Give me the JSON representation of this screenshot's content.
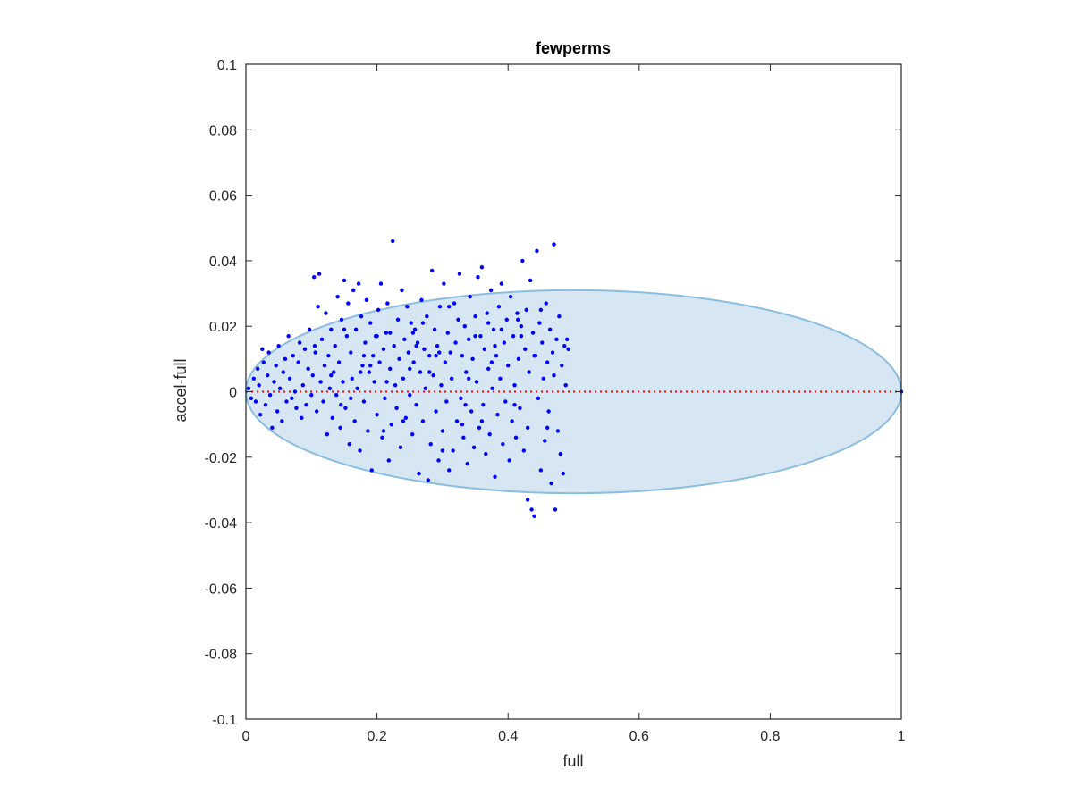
{
  "chart_data": {
    "type": "scatter",
    "title": "fewperms",
    "xlabel": "full",
    "ylabel": "accel-full",
    "xlim": [
      0,
      1
    ],
    "ylim": [
      -0.1,
      0.1
    ],
    "x_ticks": [
      "0",
      "0.2",
      "0.4",
      "0.6",
      "0.8",
      "1"
    ],
    "y_ticks": [
      "-0.1",
      "-0.08",
      "-0.06",
      "-0.04",
      "-0.02",
      "0",
      "0.02",
      "0.04",
      "0.06",
      "0.08",
      "0.1"
    ],
    "grid": false,
    "box": true,
    "zero_line": {
      "y": 0,
      "style": "dotted",
      "color": "#ff0000"
    },
    "ellipse": {
      "cx": 0.5,
      "cy": 0.0,
      "rx": 0.5,
      "ry": 0.031,
      "fill": "#d6e7f3",
      "stroke": "#8bbde0"
    },
    "points_color": "#0000ff",
    "points": [
      [
        0.004,
        0.001
      ],
      [
        0.008,
        -0.002
      ],
      [
        0.012,
        0.004
      ],
      [
        0.015,
        -0.003
      ],
      [
        0.018,
        0.007
      ],
      [
        0.02,
        0.002
      ],
      [
        0.022,
        -0.007
      ],
      [
        0.025,
        0.013
      ],
      [
        0.027,
        0.009
      ],
      [
        0.03,
        -0.004
      ],
      [
        0.033,
        0.005
      ],
      [
        0.035,
        0.012
      ],
      [
        0.037,
        -0.001
      ],
      [
        0.04,
        -0.011
      ],
      [
        0.043,
        0.003
      ],
      [
        0.046,
        0.008
      ],
      [
        0.048,
        -0.006
      ],
      [
        0.05,
        0.014
      ],
      [
        0.052,
        0.001
      ],
      [
        0.055,
        -0.009
      ],
      [
        0.057,
        0.006
      ],
      [
        0.06,
        0.01
      ],
      [
        0.062,
        -0.003
      ],
      [
        0.065,
        0.017
      ],
      [
        0.067,
        0.004
      ],
      [
        0.07,
        -0.002
      ],
      [
        0.072,
        0.011
      ],
      [
        0.075,
        0.0
      ],
      [
        0.077,
        -0.005
      ],
      [
        0.08,
        0.009
      ],
      [
        0.082,
        0.015
      ],
      [
        0.085,
        -0.008
      ],
      [
        0.087,
        0.002
      ],
      [
        0.09,
        0.013
      ],
      [
        0.092,
        -0.004
      ],
      [
        0.095,
        0.007
      ],
      [
        0.097,
        0.019
      ],
      [
        0.1,
        -0.001
      ],
      [
        0.102,
        0.005
      ],
      [
        0.104,
        0.035
      ],
      [
        0.106,
        0.012
      ],
      [
        0.108,
        -0.006
      ],
      [
        0.11,
        0.026
      ],
      [
        0.112,
        0.036
      ],
      [
        0.114,
        0.003
      ],
      [
        0.116,
        0.016
      ],
      [
        0.118,
        -0.003
      ],
      [
        0.12,
        0.008
      ],
      [
        0.122,
        0.024
      ],
      [
        0.124,
        -0.013
      ],
      [
        0.126,
        0.011
      ],
      [
        0.128,
        0.001
      ],
      [
        0.13,
        0.019
      ],
      [
        0.132,
        -0.008
      ],
      [
        0.134,
        0.006
      ],
      [
        0.136,
        0.014
      ],
      [
        0.138,
        -0.001
      ],
      [
        0.14,
        0.029
      ],
      [
        0.142,
        0.009
      ],
      [
        0.144,
        -0.011
      ],
      [
        0.146,
        0.022
      ],
      [
        0.148,
        0.003
      ],
      [
        0.15,
        0.034
      ],
      [
        0.152,
        -0.005
      ],
      [
        0.154,
        0.017
      ],
      [
        0.156,
        0.027
      ],
      [
        0.158,
        -0.016
      ],
      [
        0.16,
        0.012
      ],
      [
        0.162,
        0.004
      ],
      [
        0.164,
        0.031
      ],
      [
        0.166,
        -0.009
      ],
      [
        0.168,
        0.019
      ],
      [
        0.17,
        0.001
      ],
      [
        0.172,
        0.033
      ],
      [
        0.174,
        -0.018
      ],
      [
        0.176,
        0.023
      ],
      [
        0.178,
        0.008
      ],
      [
        0.18,
        -0.003
      ],
      [
        0.182,
        0.015
      ],
      [
        0.184,
        0.028
      ],
      [
        0.186,
        -0.012
      ],
      [
        0.188,
        0.006
      ],
      [
        0.19,
        0.021
      ],
      [
        0.192,
        -0.024
      ],
      [
        0.194,
        0.011
      ],
      [
        0.196,
        0.003
      ],
      [
        0.198,
        0.017
      ],
      [
        0.2,
        -0.007
      ],
      [
        0.202,
        0.025
      ],
      [
        0.204,
        0.009
      ],
      [
        0.206,
        0.033
      ],
      [
        0.208,
        -0.014
      ],
      [
        0.21,
        0.013
      ],
      [
        0.212,
        -0.002
      ],
      [
        0.214,
        0.018
      ],
      [
        0.216,
        0.027
      ],
      [
        0.218,
        -0.021
      ],
      [
        0.22,
        0.007
      ],
      [
        0.222,
        -0.01
      ],
      [
        0.224,
        0.046
      ],
      [
        0.226,
        0.014
      ],
      [
        0.228,
        0.002
      ],
      [
        0.23,
        -0.005
      ],
      [
        0.232,
        0.022
      ],
      [
        0.234,
        0.01
      ],
      [
        0.236,
        -0.017
      ],
      [
        0.238,
        0.031
      ],
      [
        0.24,
        0.004
      ],
      [
        0.242,
        0.016
      ],
      [
        0.244,
        -0.008
      ],
      [
        0.246,
        0.026
      ],
      [
        0.248,
        0.012
      ],
      [
        0.25,
        -0.001
      ],
      [
        0.252,
        0.021
      ],
      [
        0.254,
        -0.013
      ],
      [
        0.256,
        0.009
      ],
      [
        0.258,
        0.019
      ],
      [
        0.26,
        -0.004
      ],
      [
        0.262,
        0.015
      ],
      [
        0.264,
        -0.025
      ],
      [
        0.266,
        0.006
      ],
      [
        0.268,
        0.028
      ],
      [
        0.27,
        -0.009
      ],
      [
        0.272,
        0.013
      ],
      [
        0.274,
        0.001
      ],
      [
        0.276,
        0.023
      ],
      [
        0.278,
        -0.027
      ],
      [
        0.28,
        0.011
      ],
      [
        0.282,
        -0.016
      ],
      [
        0.284,
        0.037
      ],
      [
        0.286,
        0.005
      ],
      [
        0.288,
        0.019
      ],
      [
        0.29,
        -0.006
      ],
      [
        0.292,
        0.014
      ],
      [
        0.294,
        -0.021
      ],
      [
        0.296,
        0.026
      ],
      [
        0.298,
        0.002
      ],
      [
        0.3,
        -0.012
      ],
      [
        0.302,
        0.033
      ],
      [
        0.304,
        0.009
      ],
      [
        0.306,
        -0.003
      ],
      [
        0.308,
        0.018
      ],
      [
        0.31,
        -0.024
      ],
      [
        0.312,
        0.012
      ],
      [
        0.314,
        0.004
      ],
      [
        0.316,
        -0.018
      ],
      [
        0.318,
        0.027
      ],
      [
        0.32,
        0.015
      ],
      [
        0.322,
        -0.009
      ],
      [
        0.324,
        0.022
      ],
      [
        0.326,
        0.036
      ],
      [
        0.328,
        -0.002
      ],
      [
        0.33,
        0.011
      ],
      [
        0.332,
        -0.014
      ],
      [
        0.334,
        0.02
      ],
      [
        0.336,
        0.006
      ],
      [
        0.338,
        -0.022
      ],
      [
        0.34,
        0.016
      ],
      [
        0.342,
        0.029
      ],
      [
        0.344,
        -0.006
      ],
      [
        0.346,
        0.01
      ],
      [
        0.348,
        -0.017
      ],
      [
        0.35,
        0.023
      ],
      [
        0.352,
        0.003
      ],
      [
        0.354,
        0.035
      ],
      [
        0.356,
        -0.011
      ],
      [
        0.358,
        0.017
      ],
      [
        0.36,
        0.038
      ],
      [
        0.362,
        -0.004
      ],
      [
        0.364,
        0.013
      ],
      [
        0.366,
        -0.019
      ],
      [
        0.368,
        0.024
      ],
      [
        0.37,
        0.007
      ],
      [
        0.372,
        -0.013
      ],
      [
        0.374,
        0.031
      ],
      [
        0.376,
        0.001
      ],
      [
        0.378,
        0.019
      ],
      [
        0.38,
        -0.026
      ],
      [
        0.382,
        0.011
      ],
      [
        0.384,
        -0.007
      ],
      [
        0.386,
        0.026
      ],
      [
        0.388,
        0.004
      ],
      [
        0.39,
        0.033
      ],
      [
        0.392,
        -0.016
      ],
      [
        0.394,
        0.015
      ],
      [
        0.396,
        -0.003
      ],
      [
        0.398,
        0.022
      ],
      [
        0.4,
        0.008
      ],
      [
        0.402,
        -0.021
      ],
      [
        0.404,
        0.029
      ],
      [
        0.406,
        -0.009
      ],
      [
        0.408,
        0.017
      ],
      [
        0.41,
        0.002
      ],
      [
        0.412,
        -0.014
      ],
      [
        0.414,
        0.024
      ],
      [
        0.416,
        0.01
      ],
      [
        0.418,
        -0.005
      ],
      [
        0.42,
        0.02
      ],
      [
        0.422,
        0.04
      ],
      [
        0.424,
        -0.018
      ],
      [
        0.426,
        0.013
      ],
      [
        0.428,
        0.025
      ],
      [
        0.43,
        -0.011
      ],
      [
        0.432,
        0.006
      ],
      [
        0.434,
        0.034
      ],
      [
        0.436,
        -0.036
      ],
      [
        0.438,
        0.018
      ],
      [
        0.44,
        -0.038
      ],
      [
        0.442,
        0.011
      ],
      [
        0.444,
        0.043
      ],
      [
        0.446,
        -0.002
      ],
      [
        0.448,
        0.021
      ],
      [
        0.45,
        -0.024
      ],
      [
        0.452,
        0.015
      ],
      [
        0.454,
        0.004
      ],
      [
        0.456,
        -0.015
      ],
      [
        0.458,
        0.027
      ],
      [
        0.46,
        0.009
      ],
      [
        0.462,
        -0.006
      ],
      [
        0.464,
        0.019
      ],
      [
        0.466,
        -0.028
      ],
      [
        0.468,
        0.012
      ],
      [
        0.47,
        0.045
      ],
      [
        0.472,
        -0.036
      ],
      [
        0.474,
        0.016
      ],
      [
        0.476,
        -0.012
      ],
      [
        0.478,
        0.023
      ],
      [
        0.48,
        -0.019
      ],
      [
        0.482,
        0.008
      ],
      [
        0.484,
        -0.025
      ],
      [
        0.486,
        0.014
      ],
      [
        0.488,
        0.002
      ],
      [
        0.49,
        0.016
      ],
      [
        0.492,
        0.013
      ],
      [
        0.43,
        -0.033
      ],
      [
        0.26,
        0.014
      ],
      [
        0.31,
        0.026
      ],
      [
        0.35,
        0.017
      ],
      [
        0.2,
        0.017
      ],
      [
        0.24,
        -0.009
      ],
      [
        0.28,
        0.006
      ],
      [
        0.33,
        -0.01
      ],
      [
        0.37,
        0.021
      ],
      [
        0.41,
        -0.004
      ],
      [
        0.45,
        0.025
      ],
      [
        0.16,
        -0.002
      ],
      [
        0.19,
        0.008
      ],
      [
        0.22,
        0.018
      ],
      [
        0.27,
        0.021
      ],
      [
        0.29,
        0.011
      ],
      [
        0.34,
        0.004
      ],
      [
        0.38,
        0.014
      ],
      [
        0.42,
        0.017
      ],
      [
        0.46,
        -0.011
      ],
      [
        0.13,
        0.005
      ],
      [
        0.15,
        0.019
      ],
      [
        0.18,
        0.011
      ],
      [
        0.21,
        -0.012
      ],
      [
        0.25,
        0.007
      ],
      [
        0.3,
        -0.018
      ],
      [
        0.36,
        -0.009
      ],
      [
        0.39,
        0.019
      ],
      [
        0.44,
        0.011
      ],
      [
        0.47,
        0.005
      ],
      [
        0.105,
        0.014
      ],
      [
        0.145,
        -0.004
      ],
      [
        0.175,
        0.006
      ],
      [
        0.215,
        0.003
      ],
      [
        0.255,
        0.018
      ],
      [
        0.295,
        0.012
      ],
      [
        0.335,
        -0.004
      ],
      [
        0.375,
        0.009
      ],
      [
        0.415,
        0.022
      ],
      [
        1.0,
        0.0
      ]
    ]
  }
}
